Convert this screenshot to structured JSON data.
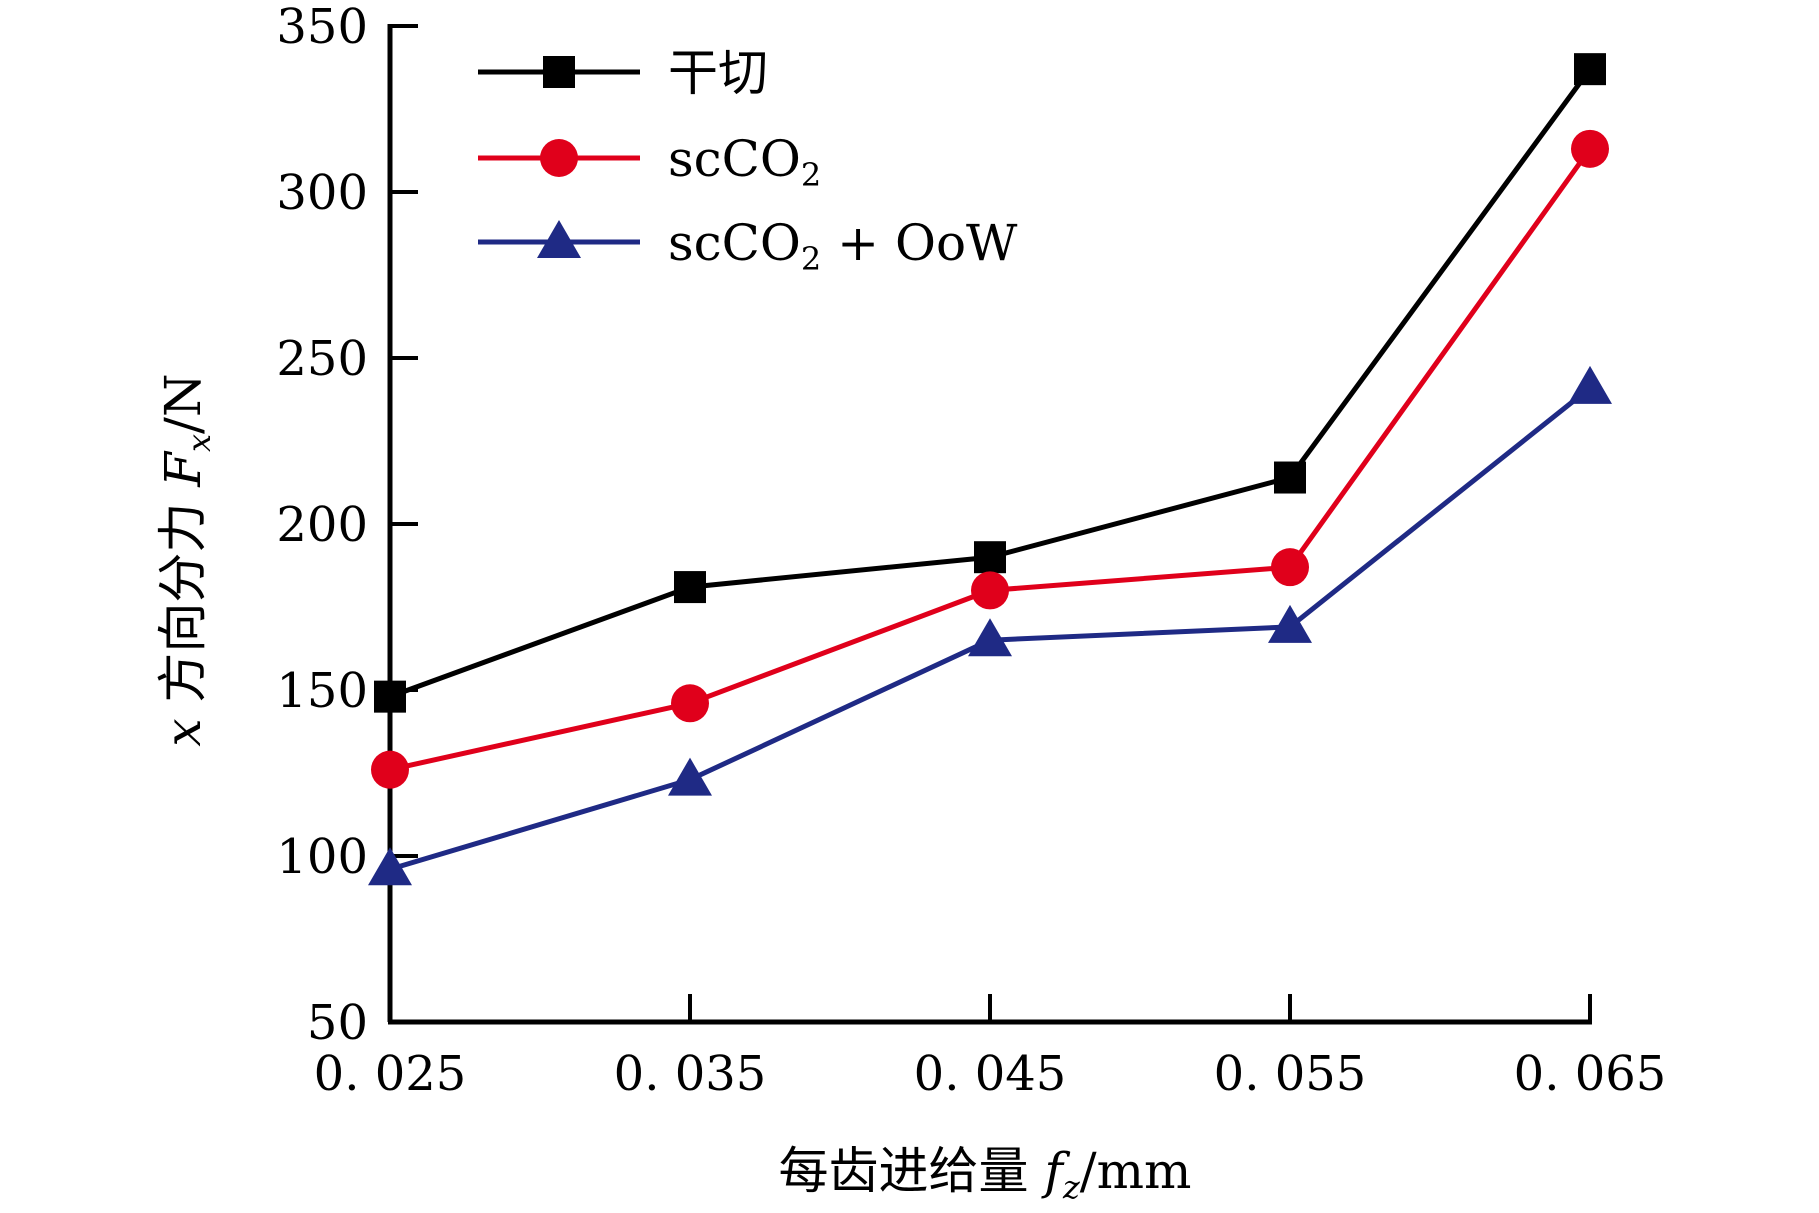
{
  "chart_data": {
    "type": "line",
    "x": [
      0.025,
      0.035,
      0.045,
      0.055,
      0.065
    ],
    "x_tick_labels": [
      "0. 025",
      "0. 035",
      "0. 045",
      "0. 055",
      "0. 065"
    ],
    "xlim": [
      0.025,
      0.065
    ],
    "ylim": [
      50,
      350
    ],
    "y_ticks": [
      50,
      100,
      150,
      200,
      250,
      300,
      350
    ],
    "xlabel": {
      "prefix": "每齿进给量 ",
      "var": "f",
      "sub": "z",
      "suffix": "/mm"
    },
    "ylabel": {
      "var1": "x",
      "text": " 方向分力 ",
      "var": "F",
      "sub": "x",
      "suffix": "/N"
    },
    "grid": false,
    "legend_position": "top-left",
    "series": [
      {
        "name": "干切",
        "name_main": "干切",
        "name_sub": "",
        "name_tail": "",
        "color": "#000000",
        "marker": "square",
        "values": [
          148,
          181,
          190,
          214,
          337
        ]
      },
      {
        "name": "scCO2",
        "name_main": "scCO",
        "name_sub": "2",
        "name_tail": "",
        "color": "#e0001b",
        "marker": "circle",
        "values": [
          126,
          146,
          180,
          187,
          313
        ]
      },
      {
        "name": "scCO2 + OoW",
        "name_main": "scCO",
        "name_sub": "2",
        "name_tail": " + OoW",
        "color": "#1f2a85",
        "marker": "triangle",
        "values": [
          96,
          123,
          165,
          169,
          241
        ]
      }
    ]
  }
}
